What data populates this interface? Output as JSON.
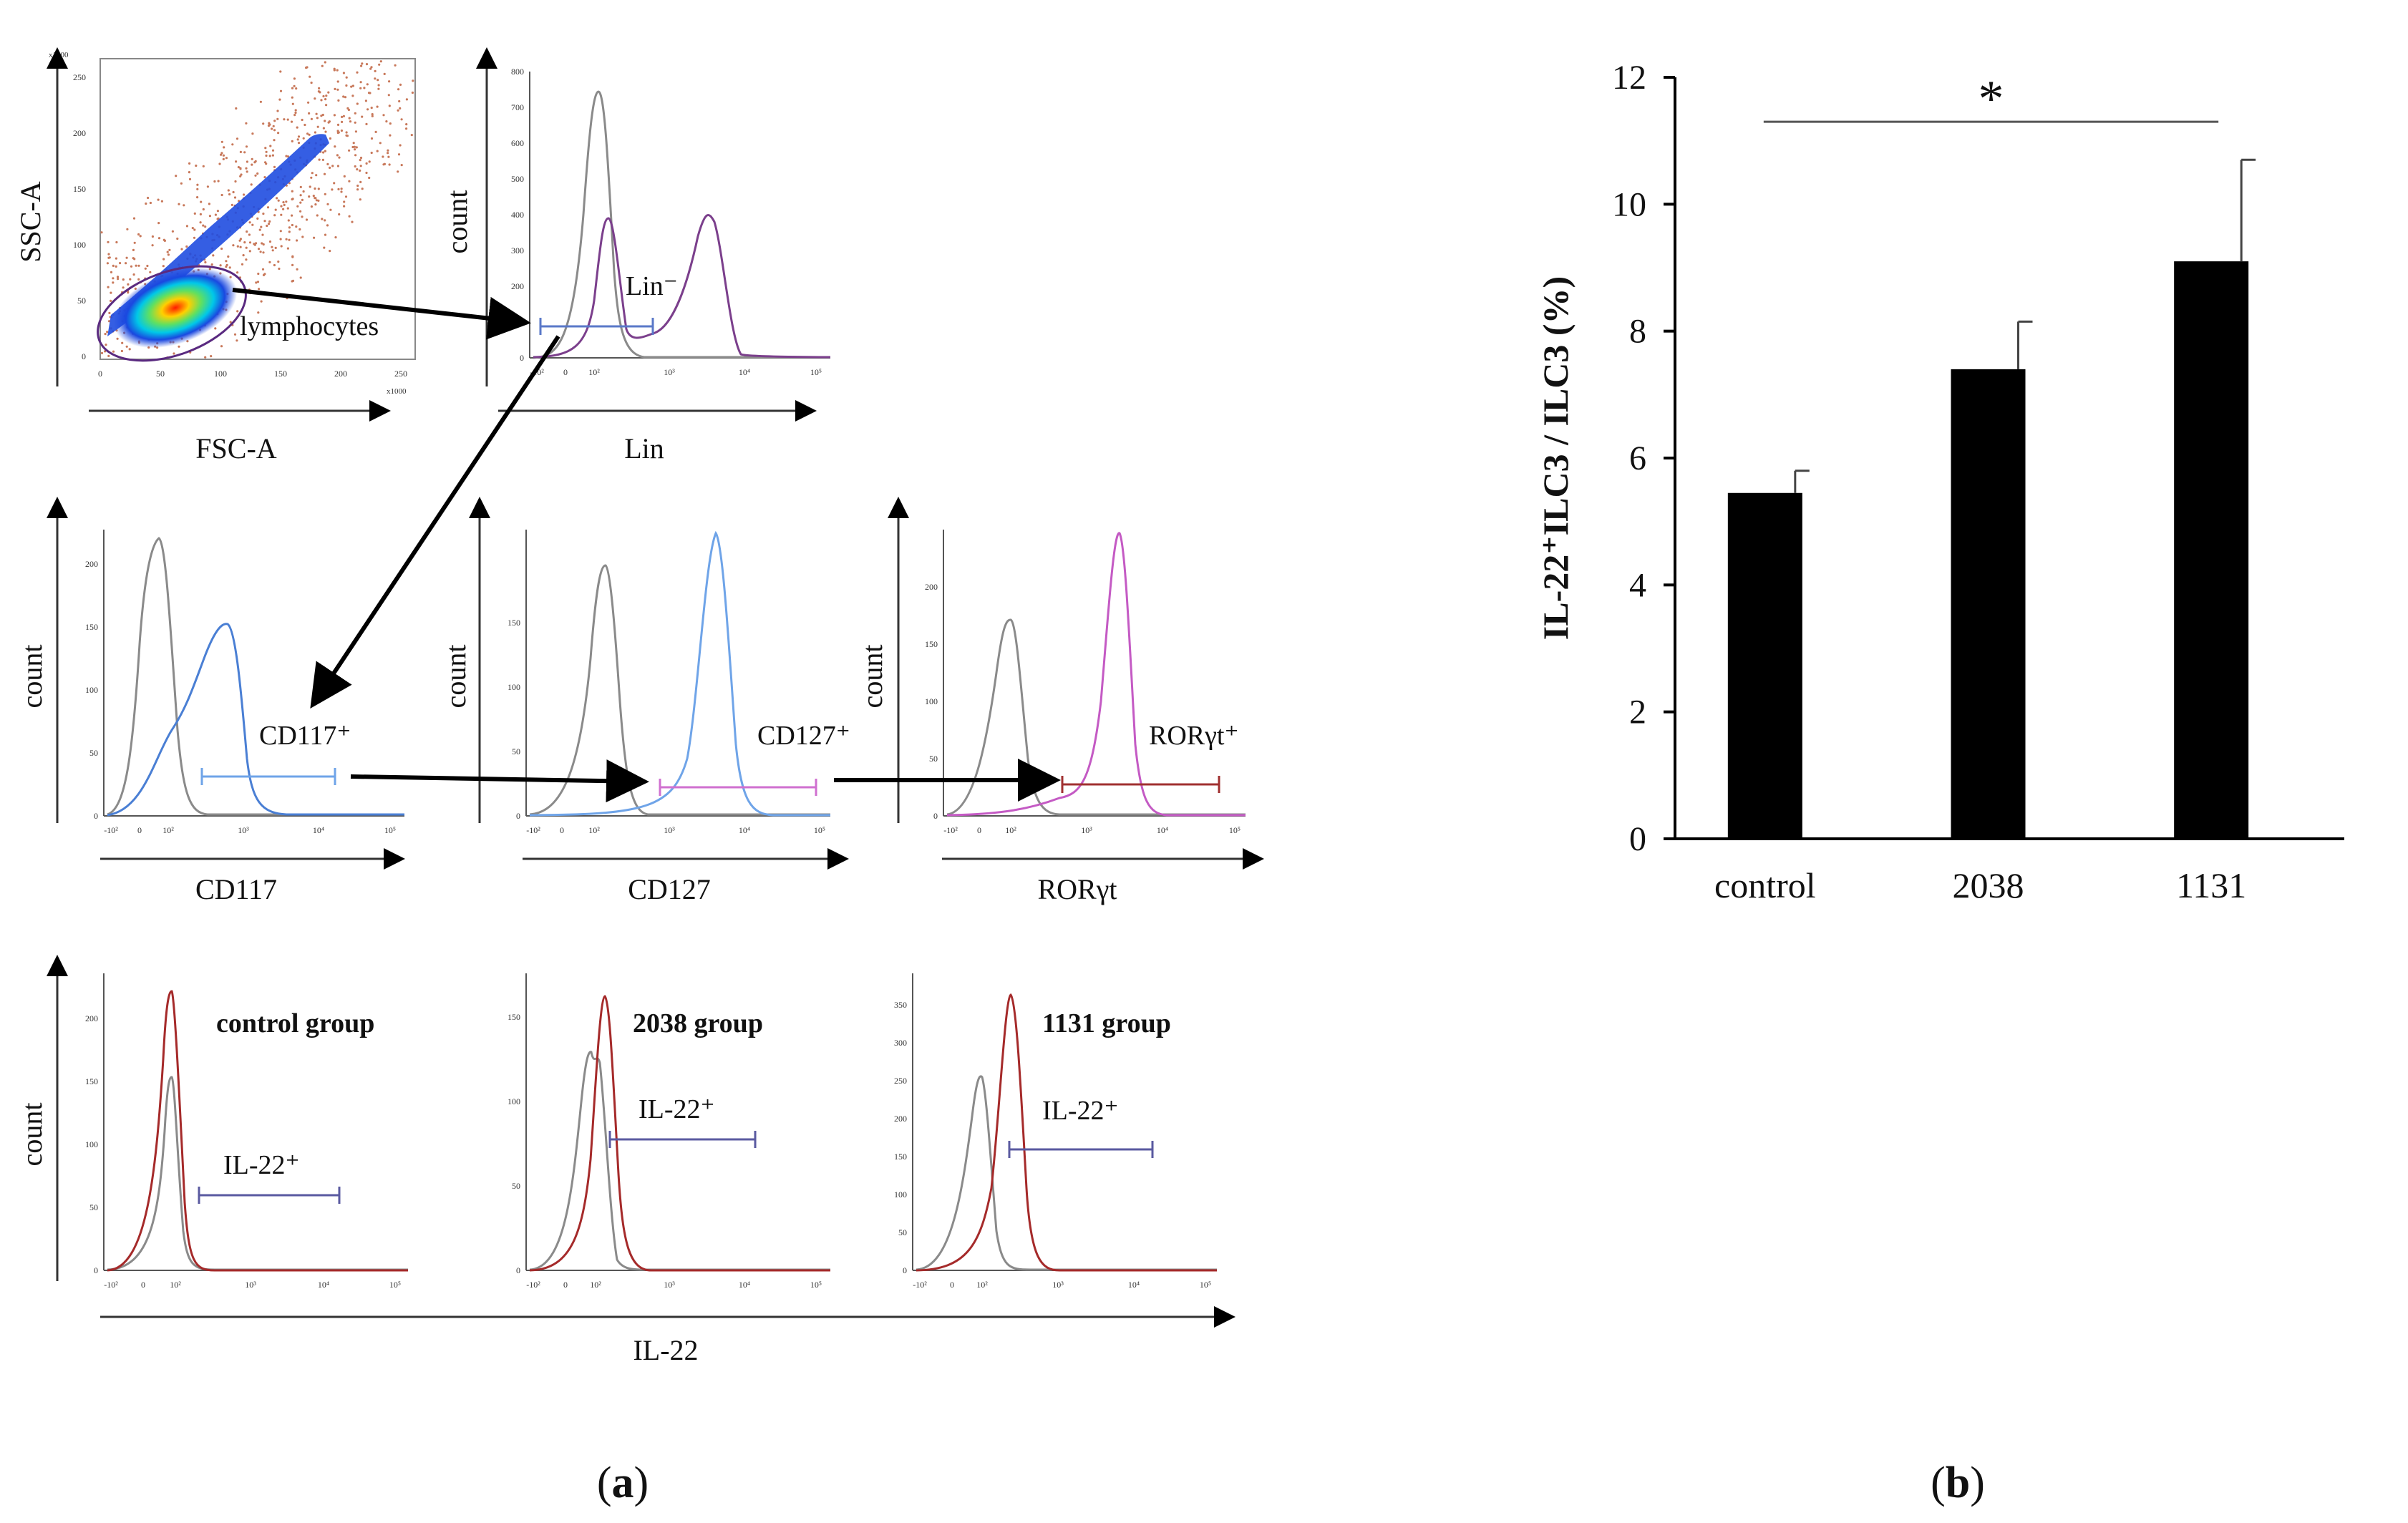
{
  "panel_a": {
    "label_open": "(",
    "label_letter": "a",
    "label_close": ")",
    "scatter": {
      "x_label": "FSC-A",
      "y_label": "SSC-A",
      "multiplier": "x1000",
      "x_ticks": [
        "0",
        "50",
        "100",
        "150",
        "200",
        "250"
      ],
      "y_ticks": [
        "0",
        "50",
        "100",
        "150",
        "200",
        "250"
      ],
      "gate_label": "lymphocytes"
    },
    "lin_hist": {
      "x_label": "Lin",
      "y_label": "count",
      "gate_label": "Lin⁻",
      "y_ticks": [
        "0",
        "100",
        "200",
        "300",
        "400",
        "500",
        "600",
        "700",
        "800"
      ]
    },
    "cd117_hist": {
      "x_label": "CD117",
      "y_label": "count",
      "gate_label": "CD117⁺",
      "y_ticks": [
        "0",
        "50",
        "100",
        "150",
        "200"
      ]
    },
    "cd127_hist": {
      "x_label": "CD127",
      "y_label": "count",
      "gate_label": "CD127⁺",
      "y_ticks": [
        "0",
        "50",
        "100",
        "150"
      ]
    },
    "ror_hist": {
      "x_label": "RORγt",
      "y_label": "count",
      "gate_label": "RORγt⁺",
      "y_ticks": [
        "0",
        "50",
        "100",
        "150",
        "200"
      ]
    },
    "log_ticks": [
      "-10²",
      "0",
      "10²",
      "10³",
      "10⁴",
      "10⁵"
    ],
    "il22_row": {
      "x_label": "IL-22",
      "y_label": "count",
      "groups": [
        {
          "name": "control group",
          "gate_label": "IL-22⁺",
          "y_ticks": [
            "0",
            "50",
            "100",
            "150",
            "200"
          ]
        },
        {
          "name": "2038 group",
          "gate_label": "IL-22⁺",
          "y_ticks": [
            "0",
            "50",
            "100",
            "150"
          ]
        },
        {
          "name": "1131 group",
          "gate_label": "IL-22⁺",
          "y_ticks": [
            "0",
            "50",
            "100",
            "150",
            "200",
            "250",
            "300",
            "350"
          ]
        }
      ]
    },
    "colors": {
      "isotype": "#8a8a8a",
      "lin": "#7b3f8c",
      "cd117": "#4a7fd4",
      "cd127": "#6fa4e8",
      "ror": "#c45ac4",
      "il22": "#a52a2a",
      "gate_blue": "#5a78c8",
      "gate_pink": "#d070d0",
      "gate_red": "#a03030",
      "gate_il22": "#5a5aa0"
    }
  },
  "panel_b": {
    "label_open": "(",
    "label_letter": "b",
    "label_close": ")",
    "significance": "*"
  },
  "chart_data": {
    "type": "bar",
    "categories": [
      "control",
      "2038",
      "1131"
    ],
    "values": [
      5.45,
      7.4,
      9.1
    ],
    "errors": [
      0.35,
      0.75,
      1.6
    ],
    "ylabel": "IL-22⁺ILC3 / ILC3 (%)",
    "ylim": [
      0,
      12
    ],
    "yticks": [
      "0",
      "2",
      "4",
      "6",
      "8",
      "10",
      "12"
    ],
    "significance": {
      "from": "control",
      "to": "1131",
      "label": "*"
    }
  }
}
